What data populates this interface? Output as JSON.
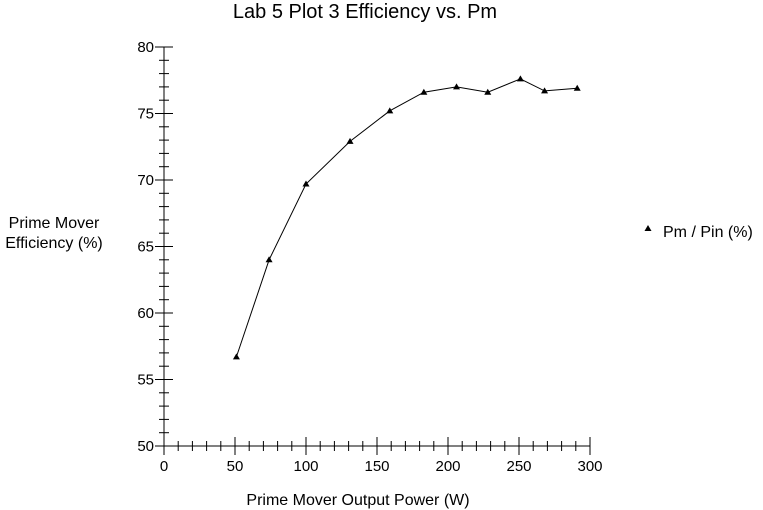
{
  "chart_data": {
    "type": "line",
    "title": "Lab 5 Plot 3  Efficiency vs. Pm",
    "xlabel": "Prime Mover Output Power (W)",
    "ylabel": [
      "Prime Mover",
      "Efficiency (%)"
    ],
    "xlim": [
      0,
      300
    ],
    "ylim": [
      50,
      80
    ],
    "xticks": [
      0,
      50,
      100,
      150,
      200,
      250,
      300
    ],
    "yticks": [
      50,
      55,
      60,
      65,
      70,
      75,
      80
    ],
    "grid": false,
    "legend_position": "right",
    "series": [
      {
        "name": "Pm / Pin (%)",
        "marker": "triangle",
        "color": "#000000",
        "x": [
          51,
          74,
          100,
          131,
          159,
          183,
          206,
          228,
          251,
          268,
          291
        ],
        "y": [
          56.7,
          64.0,
          69.7,
          72.9,
          75.2,
          76.6,
          77.0,
          76.6,
          77.6,
          76.7,
          76.9
        ]
      }
    ]
  }
}
